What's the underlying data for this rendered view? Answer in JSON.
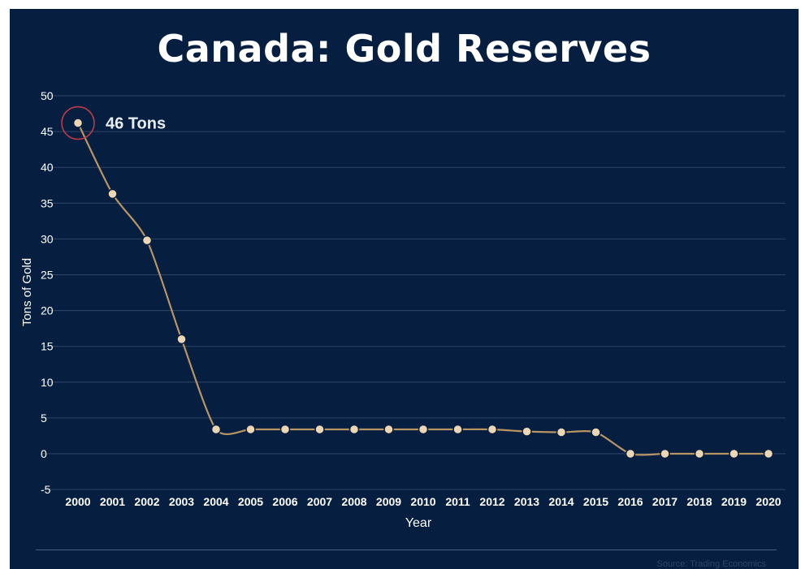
{
  "chart_data": {
    "type": "line",
    "title": "Canada: Gold Reserves",
    "xlabel": "Year",
    "ylabel": "Tons of Gold",
    "categories": [
      "2000",
      "2001",
      "2002",
      "2003",
      "2004",
      "2005",
      "2006",
      "2007",
      "2008",
      "2009",
      "2010",
      "2011",
      "2012",
      "2013",
      "2014",
      "2015",
      "2016",
      "2017",
      "2018",
      "2019",
      "2020"
    ],
    "values": [
      46.2,
      36.3,
      29.8,
      16.0,
      3.4,
      3.4,
      3.4,
      3.4,
      3.4,
      3.4,
      3.4,
      3.4,
      3.4,
      3.1,
      3.0,
      3.0,
      0,
      0,
      0,
      0,
      0
    ],
    "ylim": [
      -5,
      50
    ],
    "yticks": [
      50,
      45,
      40,
      35,
      30,
      25,
      20,
      15,
      10,
      5,
      0,
      -5
    ],
    "grid": true,
    "annotation": {
      "label": "46 Tons",
      "category": "2000"
    },
    "source": "Source: Trading Economics",
    "colors": {
      "background": "#061f40",
      "line": "#b89563",
      "marker_fill": "#ecd6b3",
      "highlight_ring": "#c0394a",
      "grid": "#2e4566"
    }
  }
}
